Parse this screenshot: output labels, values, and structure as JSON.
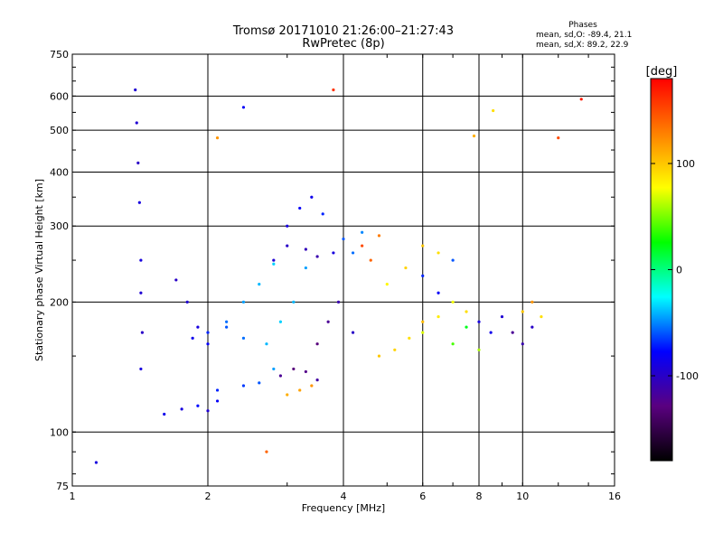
{
  "header": {
    "title_line1": "Tromsø 20171010 21:26:00–21:27:43",
    "title_line2": "RwPretec (8p)"
  },
  "phase_info": {
    "heading": "Phases",
    "line_o": "mean, sd,O: -89.4, 21.1",
    "line_x": "mean, sd,X:  89.2, 22.9"
  },
  "chart_data": {
    "type": "scatter",
    "xlabel": "Frequency [MHz]",
    "ylabel": "Stationary phase Virtual Height [km]",
    "xscale": "log",
    "yscale": "log",
    "xlim": [
      1,
      16
    ],
    "ylim": [
      75,
      750
    ],
    "x_ticks": [
      1,
      2,
      4,
      6,
      8,
      10,
      16
    ],
    "x_tick_labels": [
      "1",
      "2",
      "4",
      "6",
      "8",
      "10",
      "16"
    ],
    "x_grid": [
      2,
      4,
      6,
      8,
      10
    ],
    "y_ticks": [
      75,
      100,
      200,
      300,
      400,
      500,
      600,
      750
    ],
    "y_tick_labels": [
      "75",
      "100",
      "200",
      "300",
      "400",
      "500",
      "600",
      "750"
    ],
    "y_grid": [
      100,
      200,
      300,
      400,
      500,
      600
    ],
    "grid": true,
    "colorbar": {
      "label": "[deg]",
      "range": [
        -180,
        180
      ],
      "ticks": [
        100,
        0,
        -100
      ],
      "tick_labels": [
        "100",
        "0",
        "-100"
      ],
      "colors": [
        "#000000",
        "#5a0080",
        "#0000ff",
        "#00ffff",
        "#00ff00",
        "#ffff00",
        "#ff8000",
        "#ff0000"
      ]
    },
    "series": [
      {
        "x": [
          1.38,
          1.39,
          1.4,
          1.41,
          1.42
        ],
        "y": [
          620,
          520,
          420,
          340,
          250
        ],
        "phase": [
          -95,
          -95,
          -100,
          -90,
          -90
        ]
      },
      {
        "x": [
          1.42,
          1.43,
          1.42
        ],
        "y": [
          210,
          170,
          140
        ],
        "phase": [
          -95,
          -100,
          -90
        ]
      },
      {
        "x": [
          1.6,
          1.75,
          1.9,
          2.0,
          2.1
        ],
        "y": [
          110,
          113,
          115,
          112,
          118
        ],
        "phase": [
          -85,
          -90,
          -75,
          -95,
          -80
        ]
      },
      {
        "x": [
          1.7,
          1.8,
          1.9,
          2.0
        ],
        "y": [
          225,
          200,
          175,
          160
        ],
        "phase": [
          -100,
          -95,
          -90,
          -80
        ]
      },
      {
        "x": [
          1.85,
          2.0,
          2.2,
          2.4
        ],
        "y": [
          165,
          170,
          175,
          165
        ],
        "phase": [
          -85,
          -70,
          -60,
          -55
        ]
      },
      {
        "x": [
          2.1,
          2.4,
          2.6,
          2.8
        ],
        "y": [
          125,
          128,
          130,
          140
        ],
        "phase": [
          -70,
          -65,
          -60,
          -45
        ]
      },
      {
        "x": [
          2.2,
          2.4,
          2.6,
          2.8
        ],
        "y": [
          180,
          200,
          220,
          245
        ],
        "phase": [
          -55,
          -45,
          -40,
          -35
        ]
      },
      {
        "x": [
          2.7,
          2.9,
          3.1,
          3.3
        ],
        "y": [
          160,
          180,
          200,
          240
        ],
        "phase": [
          -40,
          -35,
          -40,
          -45
        ]
      },
      {
        "x": [
          2.8,
          3.0,
          3.3,
          3.5,
          3.8
        ],
        "y": [
          250,
          270,
          265,
          255,
          260
        ],
        "phase": [
          -95,
          -100,
          -105,
          -110,
          -90
        ]
      },
      {
        "x": [
          3.0,
          3.2,
          3.4,
          3.6
        ],
        "y": [
          300,
          330,
          350,
          320
        ],
        "phase": [
          -90,
          -80,
          -85,
          -70
        ]
      },
      {
        "x": [
          2.9,
          3.1,
          3.3,
          3.5
        ],
        "y": [
          135,
          140,
          138,
          132
        ],
        "phase": [
          -120,
          -130,
          -125,
          -115
        ]
      },
      {
        "x": [
          3.5,
          3.7,
          3.9,
          4.2
        ],
        "y": [
          160,
          180,
          200,
          170
        ],
        "phase": [
          -130,
          -120,
          -110,
          -100
        ]
      },
      {
        "x": [
          3.0,
          3.2,
          3.4
        ],
        "y": [
          122,
          125,
          128
        ],
        "phase": [
          110,
          115,
          120
        ]
      },
      {
        "x": [
          4.0,
          4.2,
          4.4
        ],
        "y": [
          280,
          260,
          290
        ],
        "phase": [
          -60,
          -55,
          -50
        ]
      },
      {
        "x": [
          4.4,
          4.6,
          4.8
        ],
        "y": [
          270,
          250,
          285
        ],
        "phase": [
          150,
          140,
          130
        ]
      },
      {
        "x": [
          4.8,
          5.2,
          5.6,
          6.0
        ],
        "y": [
          150,
          155,
          165,
          180
        ],
        "phase": [
          100,
          95,
          90,
          105
        ]
      },
      {
        "x": [
          5.0,
          5.5,
          6.0,
          6.5
        ],
        "y": [
          220,
          240,
          270,
          260
        ],
        "phase": [
          80,
          95,
          100,
          90
        ]
      },
      {
        "x": [
          6.0,
          6.5,
          7.0,
          7.5
        ],
        "y": [
          170,
          185,
          200,
          190
        ],
        "phase": [
          70,
          85,
          75,
          90
        ]
      },
      {
        "x": [
          6.0,
          6.5,
          7.0
        ],
        "y": [
          230,
          210,
          250
        ],
        "phase": [
          -70,
          -80,
          -60
        ]
      },
      {
        "x": [
          7.0,
          7.5,
          8.0
        ],
        "y": [
          160,
          175,
          155
        ],
        "phase": [
          40,
          20,
          60
        ]
      },
      {
        "x": [
          8.0,
          8.5,
          9.0
        ],
        "y": [
          180,
          170,
          185
        ],
        "phase": [
          -90,
          -85,
          -95
        ]
      },
      {
        "x": [
          9.5,
          10.0,
          10.5
        ],
        "y": [
          170,
          160,
          175
        ],
        "phase": [
          -120,
          -110,
          -100
        ]
      },
      {
        "x": [
          10.0,
          10.5,
          11.0
        ],
        "y": [
          190,
          200,
          185
        ],
        "phase": [
          100,
          120,
          90
        ]
      },
      {
        "x": [
          1.13,
          2.1,
          2.4,
          2.7,
          3.8,
          7.8,
          8.6,
          12.0,
          13.5
        ],
        "y": [
          85,
          480,
          565,
          90,
          620,
          485,
          555,
          480,
          590
        ],
        "phase": [
          -90,
          120,
          -80,
          140,
          160,
          110,
          90,
          150,
          170
        ]
      }
    ]
  }
}
